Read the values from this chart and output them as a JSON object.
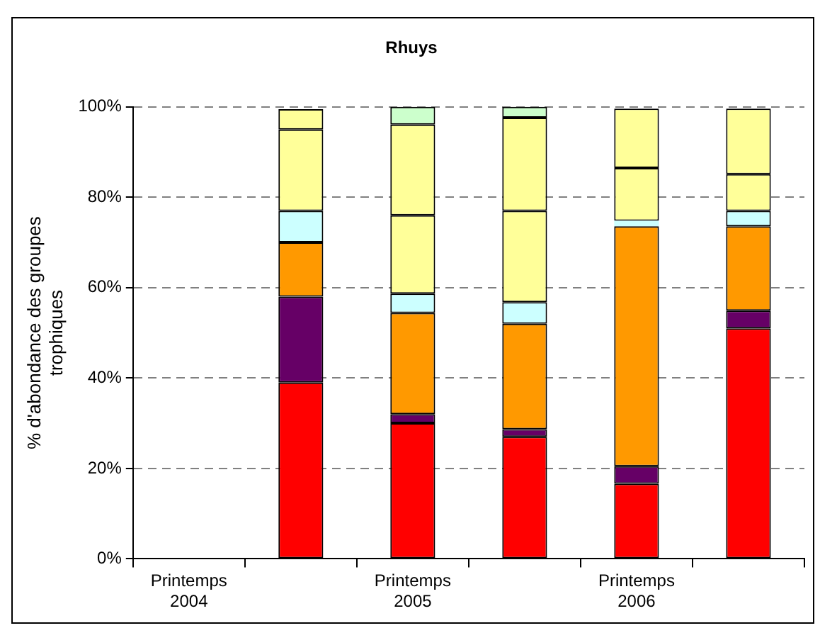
{
  "chart_data": {
    "type": "bar",
    "title": "Rhuys",
    "ylabel": "% d'abondance des groupes trophiques",
    "categories": [
      "Printemps 2004",
      null,
      "Printemps 2005",
      null,
      "Printemps 2006",
      null
    ],
    "stacked": true,
    "series": [
      {
        "color": "#ff0000",
        "values": [
          null,
          39,
          30,
          27,
          16.6,
          51
        ]
      },
      {
        "color": "#660066",
        "values": [
          null,
          19,
          2,
          1.7,
          3.9,
          3.9
        ]
      },
      {
        "color": "#ff9900",
        "values": [
          null,
          12,
          22.4,
          23.3,
          53.1,
          18.7
        ]
      },
      {
        "color": "#ccffff",
        "values": [
          null,
          7,
          4.3,
          4.8,
          1.2,
          3.4
        ]
      },
      {
        "color": "#ffff99",
        "values": [
          null,
          18,
          17.3,
          20.2,
          11.7,
          8.1
        ]
      },
      {
        "color": "#ffff99",
        "values": [
          null,
          4.5,
          20.1,
          20.6,
          13.1,
          14.5
        ]
      },
      {
        "color": "#ccffcc",
        "values": [
          null,
          null,
          3.9,
          2.4,
          null,
          null
        ]
      }
    ],
    "ylim": [
      0,
      100
    ],
    "yticks": [
      {
        "value": 0,
        "label": "0%"
      },
      {
        "value": 20,
        "label": "20%"
      },
      {
        "value": 40,
        "label": "40%"
      },
      {
        "value": 60,
        "label": "60%"
      },
      {
        "value": 80,
        "label": "80%"
      },
      {
        "value": 100,
        "label": "100%"
      }
    ],
    "grid": "y",
    "legend": false
  }
}
